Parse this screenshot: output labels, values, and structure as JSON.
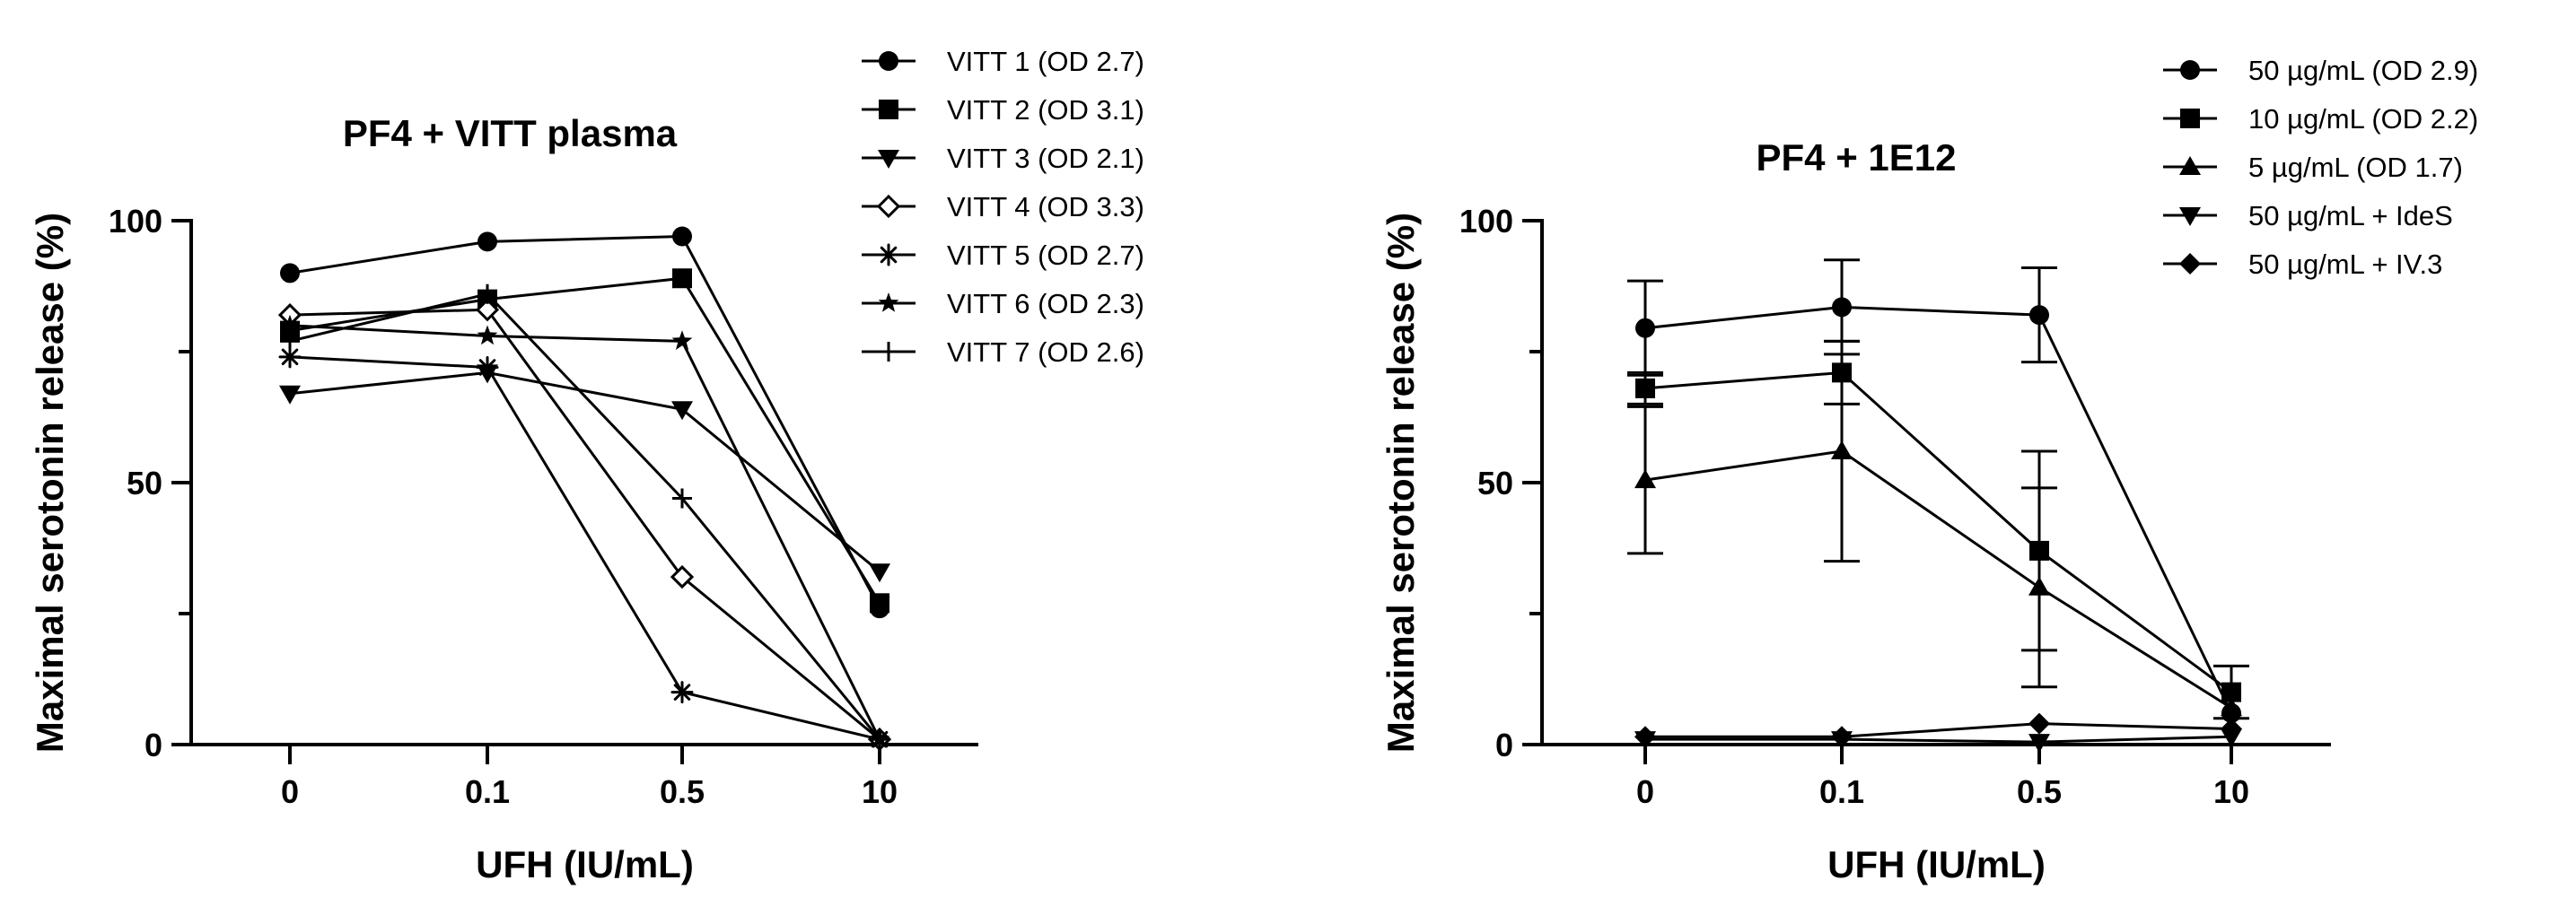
{
  "chart_data": [
    {
      "type": "line",
      "title": "PF4 + VITT plasma",
      "xlabel": "UFH (IU/mL)",
      "ylabel": "Maximal serotonin release (%)",
      "categories": [
        "0",
        "0.1",
        "0.5",
        "10"
      ],
      "ylim": [
        0,
        100
      ],
      "yticks": [
        "0",
        "50",
        "100"
      ],
      "legend_position": "right",
      "series": [
        {
          "name": "VITT 1 (OD 2.7)",
          "marker": "circle",
          "values": [
            90,
            96,
            97,
            26
          ]
        },
        {
          "name": "VITT 2 (OD 3.1)",
          "marker": "square",
          "values": [
            79,
            85,
            89,
            27
          ]
        },
        {
          "name": "VITT 3 (OD 2.1)",
          "marker": "triangle-down",
          "values": [
            67,
            71,
            64,
            33
          ]
        },
        {
          "name": "VITT 4 (OD 3.3)",
          "marker": "diamond-open",
          "values": [
            82,
            83,
            32,
            1
          ]
        },
        {
          "name": "VITT 5 (OD 2.7)",
          "marker": "asterisk",
          "values": [
            74,
            72,
            10,
            1
          ]
        },
        {
          "name": "VITT 6 (OD 2.3)",
          "marker": "star",
          "values": [
            80,
            78,
            77,
            1
          ]
        },
        {
          "name": "VITT 7 (OD 2.6)",
          "marker": "plus",
          "values": [
            77,
            86,
            47,
            1
          ]
        }
      ]
    },
    {
      "type": "line",
      "title": "PF4 + 1E12",
      "xlabel": "UFH (IU/mL)",
      "ylabel": "Maximal serotonin release (%)",
      "categories": [
        "0",
        "0.1",
        "0.5",
        "10"
      ],
      "ylim": [
        0,
        100
      ],
      "yticks": [
        "0",
        "50",
        "100"
      ],
      "legend_position": "top-right",
      "series": [
        {
          "name": "50 µg/mL (OD 2.9)",
          "marker": "circle",
          "values": [
            79.5,
            83.5,
            82,
            6
          ],
          "error": [
            9,
            9,
            9,
            0
          ]
        },
        {
          "name": "10 µg/mL (OD 2.2)",
          "marker": "square",
          "values": [
            68,
            71,
            37,
            10
          ],
          "error": [
            3,
            6,
            19,
            5
          ]
        },
        {
          "name": "5 µg/mL (OD 1.7)",
          "marker": "triangle-up",
          "values": [
            50.5,
            56,
            30,
            7
          ],
          "error": [
            14,
            21,
            19,
            0
          ]
        },
        {
          "name": "50 µg/mL + IdeS",
          "marker": "triangle-down",
          "values": [
            1,
            1,
            0.5,
            1.5
          ],
          "error": [
            0,
            0,
            0,
            0
          ]
        },
        {
          "name": "50 µg/mL + IV.3",
          "marker": "diamond",
          "values": [
            1.5,
            1.5,
            4,
            3
          ],
          "error": [
            0,
            0,
            0,
            0
          ]
        }
      ]
    }
  ]
}
